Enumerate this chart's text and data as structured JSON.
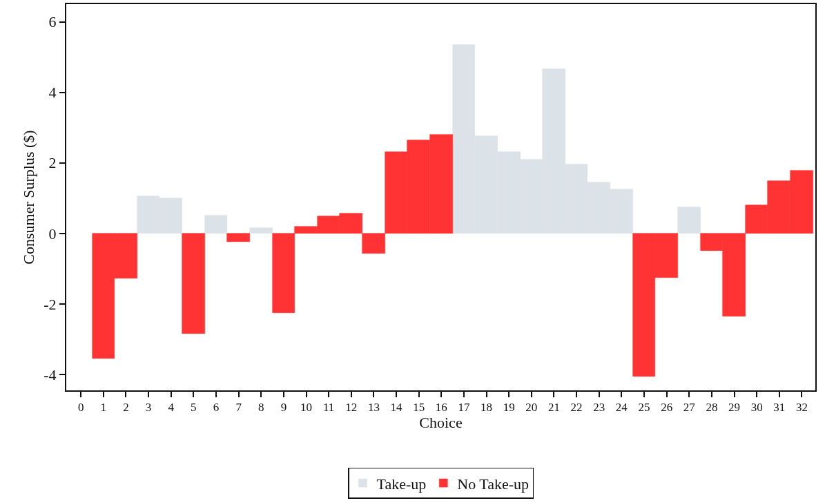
{
  "chart_data": {
    "type": "bar",
    "xlabel": "Choice",
    "ylabel": "Consumer Surplus ($)",
    "x": [
      1,
      2,
      3,
      4,
      5,
      6,
      7,
      8,
      9,
      10,
      11,
      12,
      13,
      14,
      15,
      16,
      17,
      18,
      19,
      20,
      21,
      22,
      23,
      24,
      25,
      26,
      27,
      28,
      29,
      30,
      31,
      32
    ],
    "series": [
      {
        "name": "Take-up",
        "color": "#dce3e8",
        "values": [
          null,
          null,
          1.05,
          1.0,
          null,
          0.5,
          null,
          0.15,
          null,
          null,
          null,
          null,
          null,
          null,
          null,
          null,
          5.35,
          2.75,
          2.3,
          2.1,
          4.65,
          1.95,
          1.45,
          1.25,
          null,
          null,
          0.75,
          null,
          null,
          null,
          null,
          null
        ]
      },
      {
        "name": "No Take-up",
        "color": "#ff3333",
        "values": [
          -3.55,
          -1.27,
          null,
          null,
          -2.85,
          null,
          -0.23,
          null,
          -2.25,
          0.2,
          0.48,
          0.57,
          -0.57,
          2.3,
          2.65,
          2.8,
          null,
          null,
          null,
          null,
          null,
          null,
          null,
          null,
          -4.05,
          -1.25,
          null,
          -0.5,
          -2.35,
          0.8,
          1.48,
          1.78
        ]
      }
    ],
    "xlim": [
      -0.65,
      32.6
    ],
    "xticks": [
      0,
      1,
      2,
      3,
      4,
      5,
      6,
      7,
      8,
      9,
      10,
      11,
      12,
      13,
      14,
      15,
      16,
      17,
      18,
      19,
      20,
      21,
      22,
      23,
      24,
      25,
      26,
      27,
      28,
      29,
      30,
      31,
      32
    ],
    "ylim": [
      -4.45,
      6.5
    ],
    "yticks": [
      -4,
      -2,
      0,
      2,
      4,
      6
    ],
    "grid": false,
    "legend": "bottom"
  }
}
